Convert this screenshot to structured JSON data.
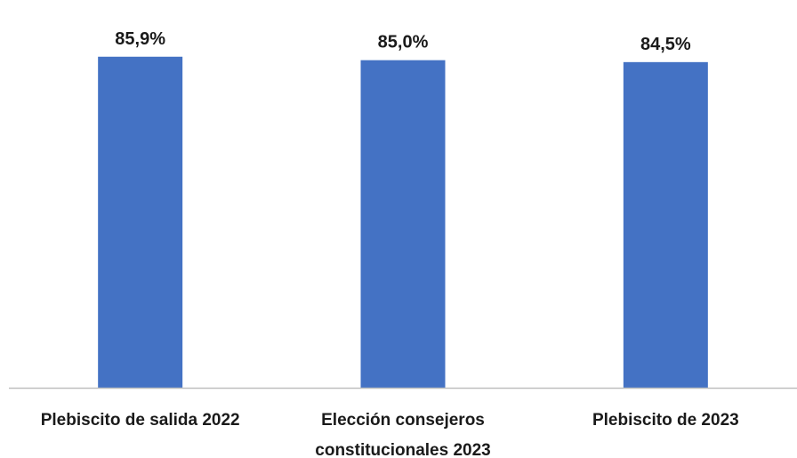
{
  "chart_data": {
    "type": "bar",
    "categories": [
      [
        "Plebiscito de salida 2022"
      ],
      [
        "Elección consejeros",
        "constitucionales 2023"
      ],
      [
        "Plebiscito de 2023"
      ]
    ],
    "values": [
      85.9,
      85.0,
      84.5
    ],
    "data_labels": [
      "85,9%",
      "85,0%",
      "84,5%"
    ],
    "ylim": [
      0,
      90
    ],
    "bar_color": "#4472C4",
    "axis_color": "#BFBFBF",
    "grid": false,
    "legend": "none"
  }
}
